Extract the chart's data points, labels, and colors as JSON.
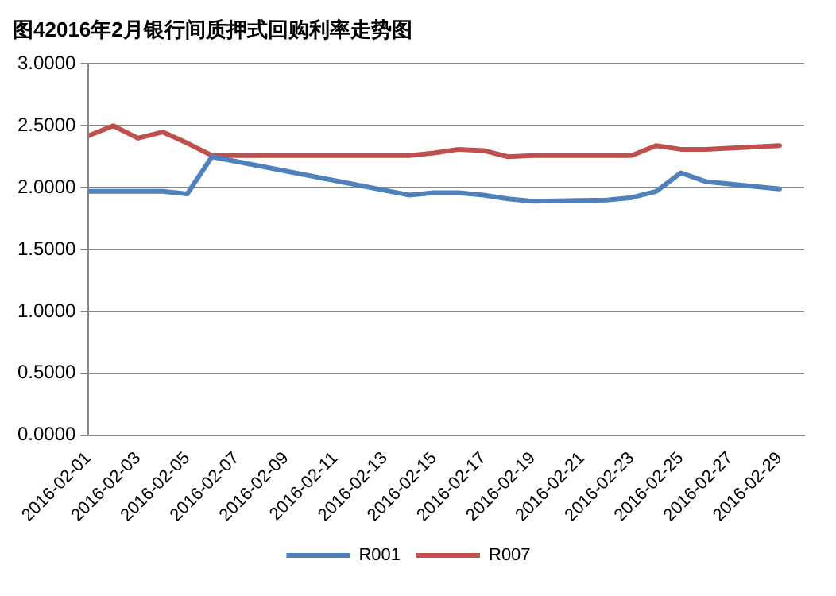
{
  "chart_data": {
    "type": "line",
    "title": "图42016年2月银行间质押式回购利率走势图",
    "x": [
      "2016-02-01",
      "2016-02-02",
      "2016-02-03",
      "2016-02-04",
      "2016-02-05",
      "2016-02-06",
      "2016-02-14",
      "2016-02-15",
      "2016-02-16",
      "2016-02-17",
      "2016-02-18",
      "2016-02-19",
      "2016-02-22",
      "2016-02-23",
      "2016-02-24",
      "2016-02-25",
      "2016-02-26",
      "2016-02-29"
    ],
    "series": [
      {
        "name": "R001",
        "color": "#4f81bd",
        "values": [
          1.97,
          1.97,
          1.97,
          1.97,
          1.95,
          2.25,
          1.94,
          1.96,
          1.96,
          1.94,
          1.91,
          1.89,
          1.9,
          1.92,
          1.97,
          2.12,
          2.05,
          1.99
        ]
      },
      {
        "name": "R007",
        "color": "#c0504d",
        "values": [
          2.42,
          2.5,
          2.4,
          2.45,
          2.36,
          2.26,
          2.26,
          2.28,
          2.31,
          2.3,
          2.25,
          2.26,
          2.26,
          2.26,
          2.34,
          2.31,
          2.31,
          2.34
        ]
      }
    ],
    "xlim": [
      "2016-02-01",
      "2016-03-01"
    ],
    "xticks": [
      "2016-02-01",
      "2016-02-03",
      "2016-02-05",
      "2016-02-07",
      "2016-02-09",
      "2016-02-11",
      "2016-02-13",
      "2016-02-15",
      "2016-02-17",
      "2016-02-19",
      "2016-02-21",
      "2016-02-23",
      "2016-02-25",
      "2016-02-27",
      "2016-02-29"
    ],
    "ylim": [
      0,
      3
    ],
    "yticks": [
      {
        "value": 0,
        "label": "0.0000"
      },
      {
        "value": 0.5,
        "label": "0.5000"
      },
      {
        "value": 1,
        "label": "1.0000"
      },
      {
        "value": 1.5,
        "label": "1.5000"
      },
      {
        "value": 2,
        "label": "2.0000"
      },
      {
        "value": 2.5,
        "label": "2.5000"
      },
      {
        "value": 3,
        "label": "3.0000"
      }
    ],
    "grid": "y",
    "legend": "bottom",
    "marker": "none",
    "line_style": "solid"
  }
}
